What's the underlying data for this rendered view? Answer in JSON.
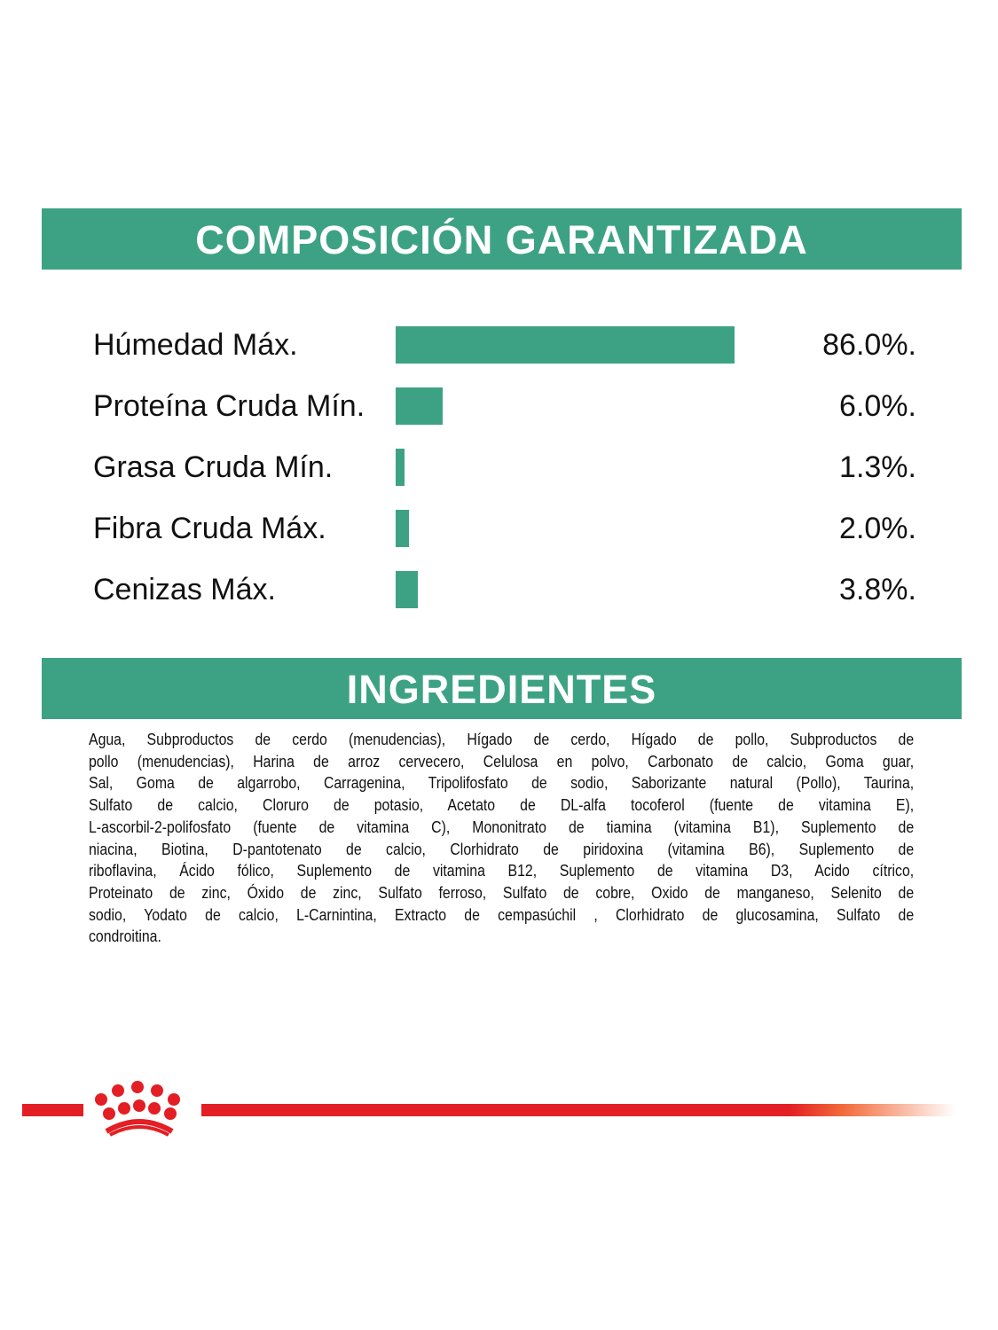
{
  "composition": {
    "title": "COMPOSICIÓN GARANTIZADA",
    "rows": [
      {
        "label": "Húmedad Máx.",
        "value": "86.0%.",
        "bar_fraction": 1.0
      },
      {
        "label": "Proteína Cruda Mín.",
        "value": "6.0%.",
        "bar_fraction": 0.14
      },
      {
        "label": "Grasa Cruda Mín.",
        "value": "1.3%.",
        "bar_fraction": 0.026
      },
      {
        "label": "Fibra Cruda Máx.",
        "value": "2.0%.",
        "bar_fraction": 0.039
      },
      {
        "label": "Cenizas Máx.",
        "value": "3.8%.",
        "bar_fraction": 0.065
      }
    ]
  },
  "ingredients": {
    "title": "INGREDIENTES",
    "lines": [
      "Agua, Subproductos de cerdo (menudencias), Hígado de cerdo, Hígado de pollo, Subproductos de",
      "pollo (menudencias), Harina de arroz cervecero, Celulosa en polvo, Carbonato de calcio, Goma guar,",
      "Sal, Goma de algarrobo, Carragenina, Tripolifosfato de sodio, Saborizante natural (Pollo), Taurina,",
      "Sulfato de calcio, Cloruro de potasio, Acetato de DL-alfa tocoferol (fuente de vitamina E),",
      "L-ascorbil-2-polifosfato (fuente de vitamina C), Mononitrato de tiamina (vitamina B1), Suplemento de",
      "niacina, Biotina, D-pantotenato de calcio, Clorhidrato de piridoxina (vitamina B6), Suplemento de",
      "riboflavina, Ácido fólico, Suplemento de vitamina B12, Suplemento de vitamina D3, Acido cítrico,",
      "Proteinato de zinc, Óxido de zinc, Sulfato ferroso, Sulfato de cobre, Oxido de manganeso, Selenito de",
      "sodio, Yodato de calcio, L-Carnintina, Extracto de cempasúchil , Clorhidrato de glucosamina, Sulfato de",
      "condroitina."
    ]
  },
  "colors": {
    "accent": "#3da283",
    "brand_red": "#e31e24"
  },
  "logo": {
    "icon": "crown-icon"
  }
}
